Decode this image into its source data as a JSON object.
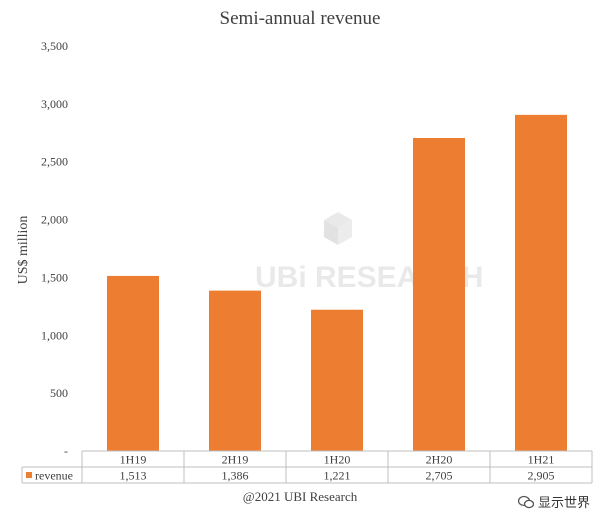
{
  "chart_data": {
    "type": "bar",
    "title": "Semi-annual revenue",
    "ylabel": "US$ million",
    "xlabel": "",
    "categories": [
      "1H19",
      "2H19",
      "1H20",
      "2H20",
      "1H21"
    ],
    "series": [
      {
        "name": "revenue",
        "values": [
          1513,
          1386,
          1221,
          2705,
          2905
        ],
        "color": "#ED7D31"
      }
    ],
    "data_table_labels": [
      "1,513",
      "1,386",
      "1,221",
      "2,705",
      "2,905"
    ],
    "ylim": [
      0,
      3500
    ],
    "yticks": [
      0,
      500,
      1000,
      1500,
      2000,
      2500,
      3000,
      3500
    ],
    "ytick_labels": [
      "-",
      "500",
      "1,000",
      "1,500",
      "2,000",
      "2,500",
      "3,000",
      "3,500"
    ],
    "grid": false,
    "legend": "data-table"
  },
  "watermark": {
    "text": "UBi RESEARCH",
    "icon": "cube-logo-icon"
  },
  "footer": {
    "copyright": "@2021 UBI Research"
  },
  "source_badge": {
    "text": "显示世界",
    "icon": "wechat-icon"
  }
}
